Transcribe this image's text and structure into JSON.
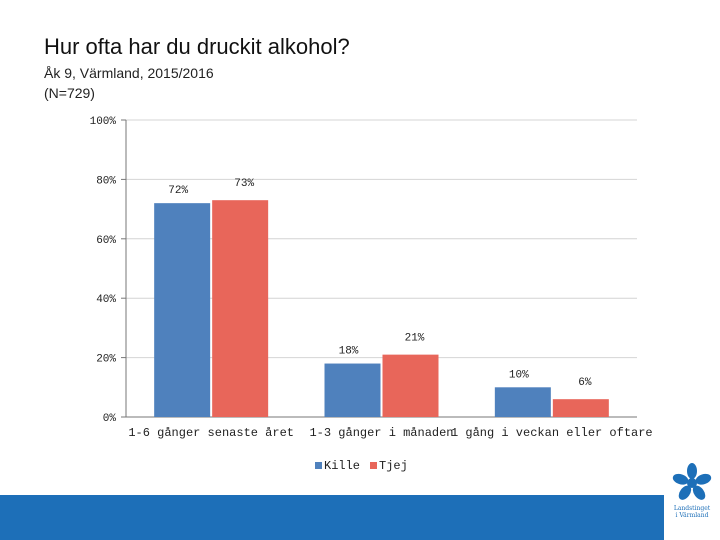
{
  "header": {
    "title": "Hur ofta har du druckit alkohol?",
    "subtitle": "Åk 9, Värmland, 2015/2016",
    "sample": "(N=729)"
  },
  "logo": {
    "line1": "Landstinget",
    "line2": "i Värmland"
  },
  "colors": {
    "kille": "#4f81bd",
    "tjej": "#e8665a",
    "footer": "#1d6fb8"
  },
  "chart_data": {
    "type": "bar",
    "title": "Hur ofta har du druckit alkohol?",
    "categories": [
      "1-6 gånger senaste året",
      "1-3 gånger i månaden",
      "1 gång i veckan eller oftare"
    ],
    "series": [
      {
        "name": "Kille",
        "values": [
          72,
          18,
          10
        ],
        "labels": [
          "72%",
          "18%",
          "10%"
        ]
      },
      {
        "name": "Tjej",
        "values": [
          73,
          21,
          6
        ],
        "labels": [
          "73%",
          "21%",
          "6%"
        ]
      }
    ],
    "yticks": [
      "0%",
      "20%",
      "40%",
      "60%",
      "80%",
      "100%"
    ],
    "ylim": [
      0,
      100
    ],
    "grid": true,
    "legend": "bottom-center"
  }
}
